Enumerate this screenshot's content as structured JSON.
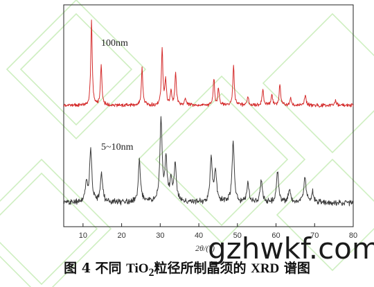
{
  "chart_data": {
    "type": "line",
    "xlabel": "2θ/(°)",
    "xlim": [
      5,
      80
    ],
    "x_ticks": [
      "10",
      "20",
      "30",
      "40",
      "50",
      "60",
      "70",
      "80"
    ],
    "series": [
      {
        "name": "100nm",
        "color": "#d42a2a",
        "peaks": [
          {
            "x": 12.2,
            "h": 0.95
          },
          {
            "x": 14.7,
            "h": 0.45
          },
          {
            "x": 25.3,
            "h": 0.42
          },
          {
            "x": 30.5,
            "h": 0.64
          },
          {
            "x": 31.4,
            "h": 0.28
          },
          {
            "x": 32.8,
            "h": 0.16
          },
          {
            "x": 34.0,
            "h": 0.38
          },
          {
            "x": 36.5,
            "h": 0.08
          },
          {
            "x": 43.9,
            "h": 0.3
          },
          {
            "x": 45.1,
            "h": 0.2
          },
          {
            "x": 49.0,
            "h": 0.45
          },
          {
            "x": 52.7,
            "h": 0.1
          },
          {
            "x": 56.6,
            "h": 0.18
          },
          {
            "x": 58.9,
            "h": 0.12
          },
          {
            "x": 61.0,
            "h": 0.24
          },
          {
            "x": 63.8,
            "h": 0.09
          },
          {
            "x": 67.6,
            "h": 0.12
          },
          {
            "x": 75.4,
            "h": 0.06
          }
        ]
      },
      {
        "name": "5~10nm",
        "color": "#3a3a3a",
        "peaks": [
          {
            "x": 10.9,
            "h": 0.18
          },
          {
            "x": 12.0,
            "h": 0.5
          },
          {
            "x": 14.8,
            "h": 0.28
          },
          {
            "x": 24.6,
            "h": 0.4
          },
          {
            "x": 30.2,
            "h": 0.78
          },
          {
            "x": 31.5,
            "h": 0.4
          },
          {
            "x": 32.8,
            "h": 0.2
          },
          {
            "x": 33.9,
            "h": 0.36
          },
          {
            "x": 43.2,
            "h": 0.42
          },
          {
            "x": 44.3,
            "h": 0.3
          },
          {
            "x": 48.9,
            "h": 0.58
          },
          {
            "x": 52.7,
            "h": 0.18
          },
          {
            "x": 56.2,
            "h": 0.22
          },
          {
            "x": 60.4,
            "h": 0.3
          },
          {
            "x": 63.5,
            "h": 0.12
          },
          {
            "x": 67.5,
            "h": 0.24
          },
          {
            "x": 69.5,
            "h": 0.1
          }
        ]
      }
    ],
    "caption": {
      "prefix": "图 4",
      "text1": "不同 ",
      "formula_main": "TiO",
      "formula_sub": "2",
      "text2": "粒径所制晶须的 ",
      "xrd": "XRD",
      "text3": " 谱图"
    },
    "watermark": "gzhwkf.com"
  }
}
